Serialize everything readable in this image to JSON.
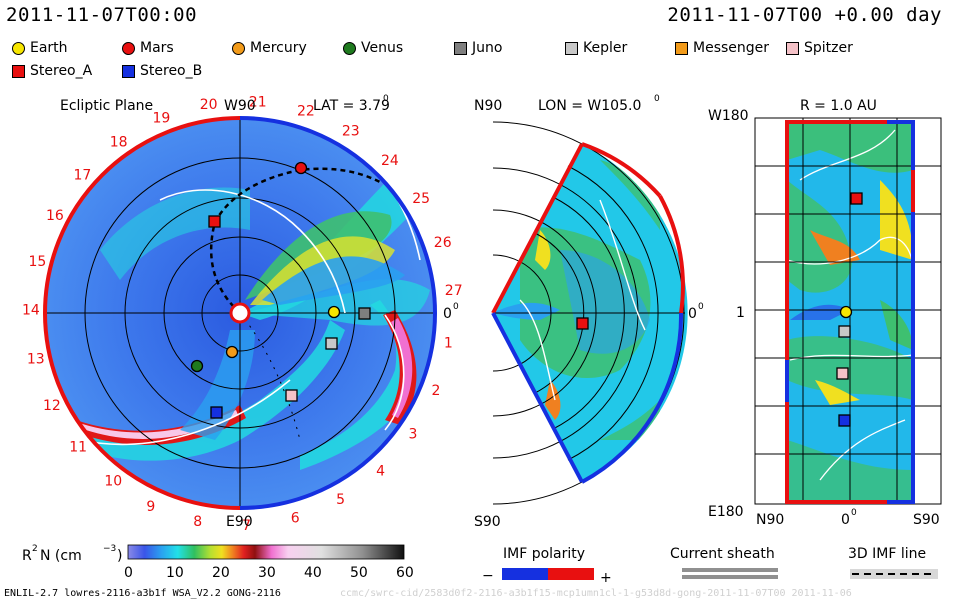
{
  "header": {
    "datetime_left": "2011-11-07T00:00",
    "datetime_right": "2011-11-07T00 +0.00 day"
  },
  "legend": {
    "items": [
      {
        "label": "Earth",
        "shape": "circle",
        "color": "#f7e600"
      },
      {
        "label": "Mars",
        "shape": "circle",
        "color": "#e81010"
      },
      {
        "label": "Mercury",
        "shape": "circle",
        "color": "#f29b1a"
      },
      {
        "label": "Venus",
        "shape": "circle",
        "color": "#1f7a1f"
      },
      {
        "label": "Juno",
        "shape": "square",
        "color": "#7f7f7f"
      },
      {
        "label": "Kepler",
        "shape": "square",
        "color": "#c8c8c8"
      },
      {
        "label": "Messenger",
        "shape": "square",
        "color": "#f29b1a"
      },
      {
        "label": "Spitzer",
        "shape": "square",
        "color": "#f5c2c8"
      },
      {
        "label": "Stereo_A",
        "shape": "square",
        "color": "#e81010"
      },
      {
        "label": "Stereo_B",
        "shape": "square",
        "color": "#1530e0"
      }
    ]
  },
  "panel_ecliptic": {
    "title": "Ecliptic Plane",
    "top_label": "W90",
    "bottom_label": "E90",
    "right_label": "0",
    "lat_label": "LAT = 3.79",
    "carrington_ticks": [
      "1",
      "2",
      "3",
      "4",
      "5",
      "6",
      "7",
      "8",
      "9",
      "10",
      "11",
      "12",
      "13",
      "14",
      "15",
      "16",
      "17",
      "18",
      "19",
      "20",
      "21",
      "22",
      "23",
      "24",
      "25",
      "26",
      "27"
    ]
  },
  "panel_meridional": {
    "top_label": "N90",
    "bottom_label": "S90",
    "right_label": "0",
    "lon_label": "LON = W105.0"
  },
  "panel_radial": {
    "title": "R = 1.0 AU",
    "top_left_label": "W180",
    "bottom_left_label": "E180",
    "mid_left_label": "1",
    "bottom_labels": [
      "N90",
      "0",
      "S90"
    ]
  },
  "colorbar": {
    "label": "R",
    "unit": "N (cm",
    "ticks": [
      "0",
      "10",
      "20",
      "30",
      "40",
      "50",
      "60"
    ]
  },
  "imf": {
    "polarity_label": "IMF polarity",
    "minus": "−",
    "plus": "+",
    "sheath_label": "Current sheath",
    "line3d_label": "3D IMF line"
  },
  "footer": {
    "model_info": "ENLIL-2.7 lowres-2116-a3b1f WSA_V2.2 GONG-2116",
    "faint_text": "ccmc/swrc-cid/2583d0f2-2116-a3b1f15-mcp1umn1cl-1-g53d8d-gong-2011-11-07T00   2011-11-06"
  }
}
